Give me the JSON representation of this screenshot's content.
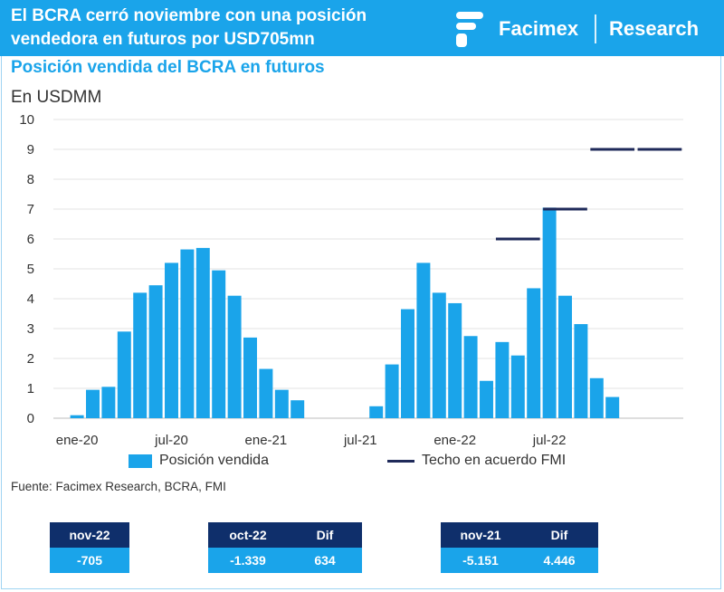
{
  "header": {
    "title": "El BCRA cerró noviembre con una posición vendedora en futuros por USD705mn",
    "brand": "Facimex",
    "section": "Research"
  },
  "colors": {
    "accent": "#1aa4ea",
    "navy": "#0f2f6b",
    "ceiling": "#1f2a5a"
  },
  "chart_data": {
    "type": "bar",
    "title": "Posición vendida del BCRA en futuros",
    "ylabel": "En USDMM",
    "ylim": [
      0,
      10
    ],
    "yticks": [
      "0",
      "1",
      "2",
      "3",
      "4",
      "5",
      "6",
      "7",
      "8",
      "9",
      "10"
    ],
    "x_tick_labels": [
      "ene-20",
      "jul-20",
      "ene-21",
      "jul-21",
      "ene-22",
      "jul-22"
    ],
    "categories": [
      "dic-19",
      "ene-20",
      "feb-20",
      "mar-20",
      "abr-20",
      "may-20",
      "jun-20",
      "jul-20",
      "ago-20",
      "sep-20",
      "oct-20",
      "nov-20",
      "dic-20",
      "ene-21",
      "feb-21",
      "mar-21",
      "abr-21",
      "may-21",
      "jun-21",
      "jul-21",
      "ago-21",
      "sep-21",
      "oct-21",
      "nov-21",
      "dic-21",
      "ene-22",
      "feb-22",
      "mar-22",
      "abr-22",
      "may-22",
      "jun-22",
      "jul-22",
      "ago-22",
      "sep-22",
      "oct-22",
      "nov-22"
    ],
    "series": [
      {
        "name": "Posición vendida",
        "kind": "bar",
        "values": [
          0,
          0.1,
          0.95,
          1.05,
          2.9,
          4.2,
          4.45,
          5.2,
          5.65,
          5.7,
          4.95,
          4.1,
          2.7,
          1.65,
          0.95,
          0.6,
          0,
          0,
          0,
          0,
          0.4,
          1.8,
          3.65,
          5.2,
          4.2,
          3.85,
          2.75,
          1.25,
          2.55,
          2.1,
          4.35,
          7.05,
          4.1,
          3.15,
          1.34,
          0.71
        ]
      },
      {
        "name": "Techo en acuerdo FMI",
        "kind": "segments",
        "segments": [
          {
            "from": "abr-22",
            "to": "jun-22",
            "value": 6
          },
          {
            "from": "jul-22",
            "to": "sep-22",
            "value": 7
          },
          {
            "from": "oct-22",
            "to": "dic-22",
            "value": 9
          },
          {
            "from": "ene-23",
            "to": "mar-23",
            "value": 9
          }
        ]
      }
    ],
    "legend": [
      "Posición vendida",
      "Techo en acuerdo FMI"
    ]
  },
  "source": "Fuente: Facimex Research, BCRA, FMI",
  "tables": [
    {
      "headers": [
        "nov-22"
      ],
      "values": [
        "-705"
      ]
    },
    {
      "headers": [
        "oct-22",
        "Dif"
      ],
      "values": [
        "-1.339",
        "634"
      ]
    },
    {
      "headers": [
        "nov-21",
        "Dif"
      ],
      "values": [
        "-5.151",
        "4.446"
      ]
    }
  ]
}
